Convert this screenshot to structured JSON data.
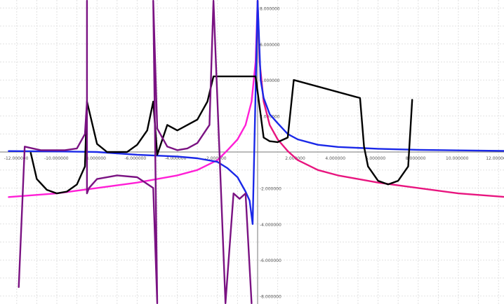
{
  "chart_data": {
    "type": "line",
    "title": "",
    "xlabel": "",
    "ylabel": "",
    "xlim": [
      -12.4,
      12.4
    ],
    "ylim": [
      -8.4,
      8.4
    ],
    "grid": true,
    "legend": "none",
    "x_tick_labels": [
      "-12.000000",
      "-10.000000",
      "-8.000000",
      "-6.000000",
      "-4.000000",
      "-2.000000",
      "2.000000",
      "4.000000",
      "6.000000",
      "8.000000",
      "10.000000",
      "12.000000"
    ],
    "x_tick_values": [
      -12,
      -10,
      -8,
      -6,
      -4,
      -2,
      2,
      4,
      6,
      8,
      10,
      12
    ],
    "y_tick_labels": [
      "8.000000",
      "6.000000",
      "4.000000",
      "2.000000",
      "-2.000000",
      "-4.000000",
      "-6.000000",
      "-8.000000"
    ],
    "y_tick_values": [
      8,
      6,
      4,
      2,
      -2,
      -4,
      -6,
      -8
    ],
    "series": [
      {
        "function": "log_abs_decaying",
        "color": "#ff1fd6",
        "color_right": "#e8157f",
        "points": [
          [
            -12.4,
            -2.5
          ],
          [
            -10,
            -2.3
          ],
          [
            -8,
            -2.0
          ],
          [
            -6,
            -1.7
          ],
          [
            -4,
            -1.3
          ],
          [
            -3,
            -1.0
          ],
          [
            -2,
            -0.45
          ],
          [
            -1.5,
            0.1
          ],
          [
            -1,
            0.7
          ],
          [
            -0.6,
            1.5
          ],
          [
            -0.3,
            2.8
          ],
          [
            -0.1,
            5.0
          ],
          [
            0,
            8.4
          ],
          [
            0.1,
            5.0
          ],
          [
            0.3,
            2.8
          ],
          [
            0.6,
            1.5
          ],
          [
            1,
            0.7
          ],
          [
            1.5,
            0.05
          ],
          [
            2,
            -0.45
          ],
          [
            3,
            -1.0
          ],
          [
            4,
            -1.3
          ],
          [
            6,
            -1.7
          ],
          [
            8,
            -2.0
          ],
          [
            10,
            -2.3
          ],
          [
            12.4,
            -2.5
          ]
        ]
      },
      {
        "function": "reciprocal_like",
        "color": "#1a28e8",
        "points": [
          [
            -12.4,
            0.05
          ],
          [
            -10,
            0.03
          ],
          [
            -8,
            0.0
          ],
          [
            -6,
            -0.15
          ],
          [
            -4,
            -0.25
          ],
          [
            -3,
            -0.35
          ],
          [
            -2,
            -0.55
          ],
          [
            -1.5,
            -0.9
          ],
          [
            -1,
            -1.4
          ],
          [
            -0.6,
            -2.2
          ],
          [
            -0.4,
            -2.7
          ],
          [
            -0.25,
            -4.0
          ],
          [
            0,
            8.4
          ],
          [
            0.15,
            4.0
          ],
          [
            0.3,
            3.0
          ],
          [
            0.6,
            2.1
          ],
          [
            1,
            1.6
          ],
          [
            1.5,
            1.0
          ],
          [
            2,
            0.7
          ],
          [
            3,
            0.4
          ],
          [
            4,
            0.28
          ],
          [
            6,
            0.18
          ],
          [
            8,
            0.12
          ],
          [
            10,
            0.09
          ],
          [
            12.4,
            0.06
          ]
        ]
      },
      {
        "function": "secant",
        "color": "#000000",
        "points": [
          [
            -11.3,
            -0.05
          ],
          [
            -11,
            -1.5
          ],
          [
            -10.5,
            -2.1
          ],
          [
            -10,
            -2.3
          ],
          [
            -9.5,
            -2.2
          ],
          [
            -9,
            -1.8
          ],
          [
            -8.6,
            -0.8
          ],
          [
            -8.5,
            2.8
          ],
          [
            -8,
            0.45
          ],
          [
            -7.5,
            0.0
          ],
          [
            -7,
            0.0
          ],
          [
            -6.5,
            0.0
          ],
          [
            -6,
            0.4
          ],
          [
            -5.5,
            1.2
          ],
          [
            -5.2,
            2.8
          ],
          [
            -5,
            -0.15
          ],
          [
            -4.5,
            1.5
          ],
          [
            -4,
            1.2
          ],
          [
            -3.5,
            1.5
          ],
          [
            -3,
            1.8
          ],
          [
            -2.5,
            2.8
          ],
          [
            -2.2,
            4.2
          ],
          [
            -0.1,
            4.2
          ],
          [
            0.3,
            0.8
          ],
          [
            0.6,
            0.6
          ],
          [
            1,
            0.55
          ],
          [
            1.5,
            0.8
          ],
          [
            1.8,
            4.0
          ],
          [
            5.1,
            3.0
          ],
          [
            5.3,
            0.3
          ],
          [
            5.5,
            -0.8
          ],
          [
            6,
            -1.6
          ],
          [
            6.5,
            -1.8
          ],
          [
            7,
            -1.6
          ],
          [
            7.5,
            -0.8
          ],
          [
            7.7,
            2.9
          ]
        ]
      },
      {
        "function": "tangent_like",
        "color": "#7a1282",
        "points": [
          [
            -11.9,
            -7.5
          ],
          [
            -11.6,
            0.3
          ],
          [
            -11.2,
            0.2
          ],
          [
            -10.8,
            0.1
          ],
          [
            -10.2,
            0.1
          ],
          [
            -9.6,
            0.1
          ],
          [
            -9,
            0.2
          ],
          [
            -8.6,
            1.0
          ],
          [
            -8.5,
            2.8
          ],
          [
            -8.5,
            8.4
          ],
          [
            -8.5,
            -2.3
          ],
          [
            -8.4,
            -2.0
          ],
          [
            -8,
            -1.5
          ],
          [
            -7,
            -1.3
          ],
          [
            -6,
            -1.4
          ],
          [
            -5.2,
            -2.0
          ],
          [
            -5.0,
            -8.4
          ],
          [
            -5.2,
            8.4
          ],
          [
            -5,
            1.3
          ],
          [
            -4.5,
            0.3
          ],
          [
            -4,
            0.1
          ],
          [
            -3.5,
            0.2
          ],
          [
            -3,
            0.5
          ],
          [
            -2.4,
            1.5
          ],
          [
            -2.2,
            8.4
          ],
          [
            -1.6,
            -8.4
          ],
          [
            -1.2,
            -2.3
          ],
          [
            -0.9,
            -2.6
          ],
          [
            -0.6,
            -2.3
          ],
          [
            -0.3,
            -8.4
          ]
        ]
      }
    ]
  }
}
